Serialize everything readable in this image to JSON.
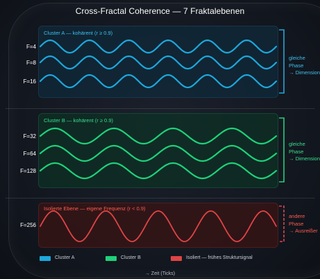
{
  "title": "Cross-Fractal Coherence — 7 Fraktalebenen",
  "x_axis_label": "→ Zeit (Ticks)",
  "colors": {
    "cluster_a": "#1ea7dc",
    "cluster_b": "#1fd17a",
    "isolated": "#e04444",
    "isolated_text": "#ff5a4e",
    "background": "#151a22"
  },
  "clusters": [
    {
      "id": "a",
      "label": "Cluster A — kohärent (r ≥ 0.9)",
      "note": [
        "gleiche",
        "Phase",
        "→ Dimensionen"
      ],
      "color": "#1ea7dc",
      "levels": [
        {
          "label": "F=4",
          "frequency": 6.0,
          "amplitude": 0.5,
          "phase": 0.0
        },
        {
          "label": "F=8",
          "frequency": 6.0,
          "amplitude": 0.5,
          "phase": 0.0
        },
        {
          "label": "F=16",
          "frequency": 6.0,
          "amplitude": 0.5,
          "phase": 0.0
        }
      ]
    },
    {
      "id": "b",
      "label": "Cluster B — kohärent (r ≥ 0.9)",
      "note": [
        "gleiche",
        "Phase",
        "→ Dimensionen"
      ],
      "color": "#1fd17a",
      "levels": [
        {
          "label": "F=32",
          "frequency": 4.0,
          "amplitude": 0.6,
          "phase": 0.0
        },
        {
          "label": "F=64",
          "frequency": 4.0,
          "amplitude": 0.6,
          "phase": 0.0
        },
        {
          "label": "F=128",
          "frequency": 4.0,
          "amplitude": 0.6,
          "phase": 0.0
        }
      ]
    },
    {
      "id": "c",
      "label": "Isolierte Ebene — eigene Frequenz (r < 0.9)",
      "note": [
        "andere",
        "Phase",
        "→ Ausreißer"
      ],
      "color": "#e04444",
      "levels": [
        {
          "label": "F=256",
          "frequency": 4.5,
          "amplitude": 1.0,
          "phase": 0.0
        }
      ]
    }
  ],
  "legend": [
    {
      "label": "Cluster A",
      "color": "#1ea7dc"
    },
    {
      "label": "Cluster B",
      "color": "#1fd17a"
    },
    {
      "label": "Isoliert — frühes Struktursignal",
      "color": "#e04444"
    }
  ]
}
